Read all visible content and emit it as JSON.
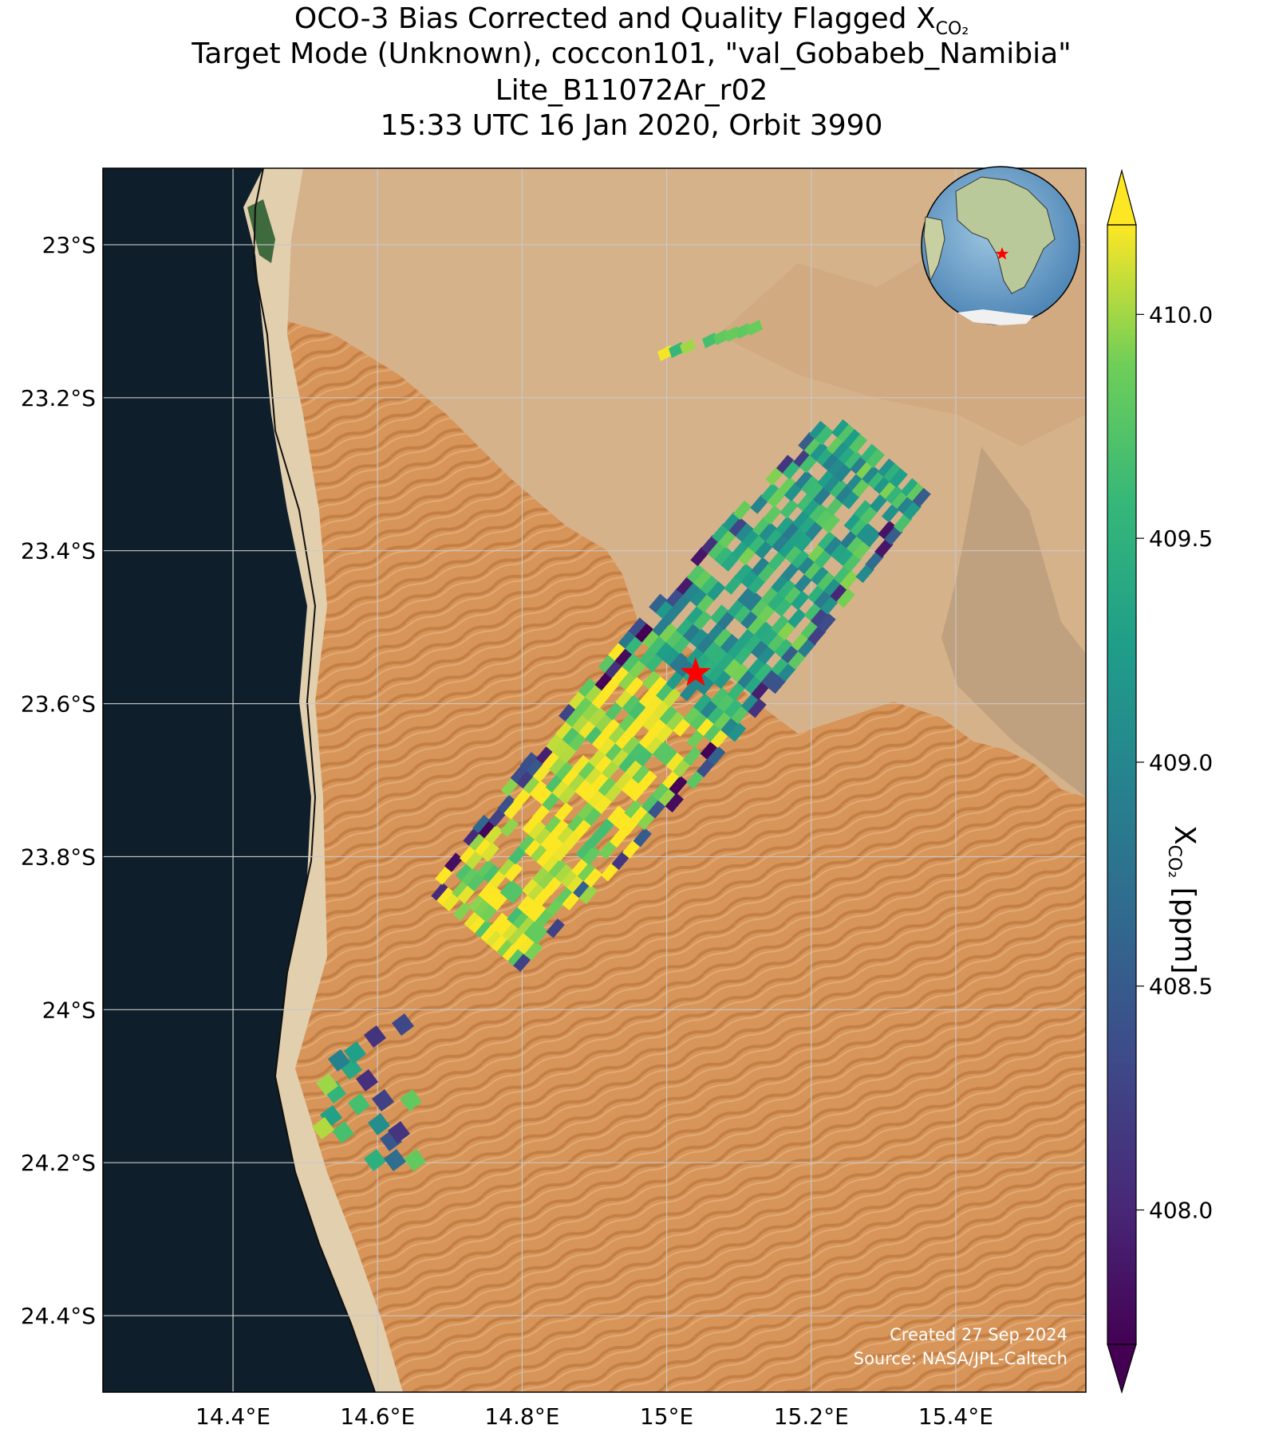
{
  "title": {
    "line1_prefix": "OCO-3 Bias Corrected and Quality Flagged X",
    "line1_sub": "CO₂",
    "line2": "Target Mode (Unknown), coccon101, \"val_Gobabeb_Namibia\"",
    "line3": "Lite_B11072Ar_r02",
    "line4": "15:33 UTC 16 Jan 2020, Orbit 3990"
  },
  "map": {
    "lon_range": [
      14.22,
      15.58
    ],
    "lat_range": [
      -24.5,
      -22.9
    ],
    "lon_ticks": [
      14.4,
      14.6,
      14.8,
      15.0,
      15.2,
      15.4
    ],
    "lon_tick_labels": [
      "14.4°E",
      "14.6°E",
      "14.8°E",
      "15°E",
      "15.2°E",
      "15.4°E"
    ],
    "lat_ticks": [
      -23.0,
      -23.2,
      -23.4,
      -23.6,
      -23.8,
      -24.0,
      -24.2,
      -24.4
    ],
    "lat_tick_labels": [
      "23°S",
      "23.2°S",
      "23.4°S",
      "23.6°S",
      "23.8°S",
      "24°S",
      "24.2°S",
      "24.4°S"
    ],
    "site_marker": {
      "lon": 15.04,
      "lat": -23.56,
      "color": "#ff0000",
      "icon": "star-marker"
    },
    "colors": {
      "ocean": "#0e1f2b",
      "sand": "#d99a5e",
      "plain": "#d8b48c",
      "grid": "#c8c8c8"
    }
  },
  "colorbar": {
    "vmin": 407.7,
    "vmax": 410.2,
    "ticks": [
      410.0,
      409.5,
      409.0,
      408.5,
      408.0
    ],
    "tick_labels": [
      "410.0",
      "409.5",
      "409.0",
      "408.5",
      "408.0"
    ],
    "label_prefix": "X",
    "label_sub": "CO₂",
    "label_suffix": " [ppm]",
    "colormap": "viridis",
    "extend": "both"
  },
  "inset": {
    "icon": "globe-inset-africa",
    "marker_color": "#ff0000"
  },
  "credits": {
    "created": "Created 27 Sep 2024",
    "source": "Source: NASA/JPL-Caltech"
  }
}
